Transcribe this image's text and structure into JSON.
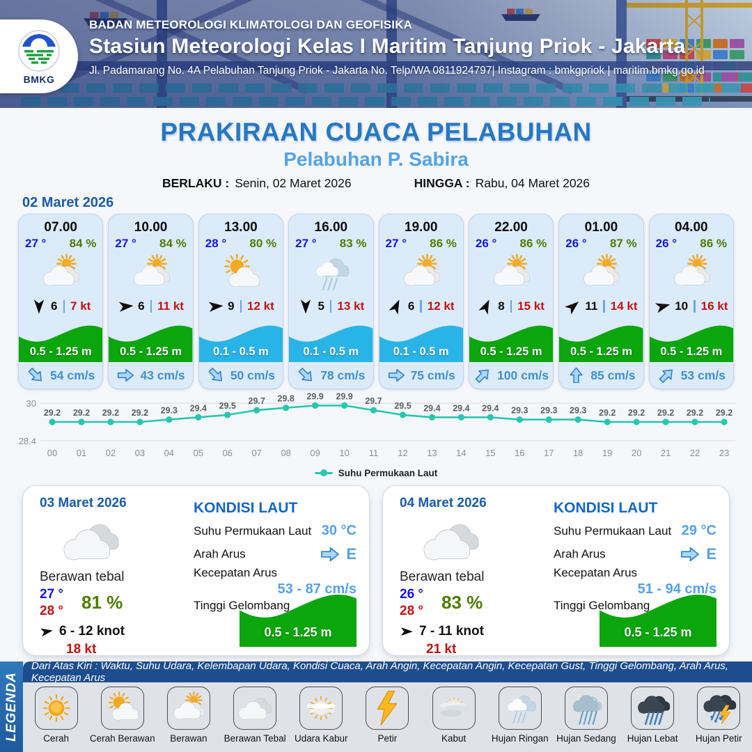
{
  "header": {
    "agency": "BADAN METEOROLOGI KLIMATOLOGI DAN GEOFISIKA",
    "station": "Stasiun Meteorologi Kelas I Maritim Tanjung Priok - Jakarta",
    "address": "Jl. Padamarang No. 4A Pelabuhan Tanjung Priok - Jakarta No. Telp/WA 0811924797| Instagram : bmkgpriok | maritim.bmkg.go.id",
    "logo_label": "BMKG"
  },
  "title": {
    "main": "PRAKIRAAN CUACA PELABUHAN",
    "subtitle": "Pelabuhan P. Sabira",
    "berlaku_label": "BERLAKU :",
    "berlaku_value": "Senin, 02 Maret 2026",
    "hingga_label": "HINGGA :",
    "hingga_value": "Rabu, 04 Maret 2026"
  },
  "day1": {
    "date": "02 Maret 2026",
    "cards": [
      {
        "time": "07.00",
        "temp": "27 °",
        "humidity": "84 %",
        "icon": "berawan",
        "wind_dir_deg": 180,
        "wind": "6",
        "gust": "7 kt",
        "wave": "0.5 - 1.25 m",
        "wave_color": "green",
        "current_dir_deg": 45,
        "current": "54 cm/s"
      },
      {
        "time": "10.00",
        "temp": "27 °",
        "humidity": "84 %",
        "icon": "berawan",
        "wind_dir_deg": 85,
        "wind": "6",
        "gust": "11 kt",
        "wave": "0.5 - 1.25 m",
        "wave_color": "green",
        "current_dir_deg": 0,
        "current": "43 cm/s"
      },
      {
        "time": "13.00",
        "temp": "28 °",
        "humidity": "80 %",
        "icon": "cerah-berawan",
        "wind_dir_deg": 85,
        "wind": "9",
        "gust": "12 kt",
        "wave": "0.1 - 0.5 m",
        "wave_color": "blue",
        "current_dir_deg": 45,
        "current": "50 cm/s"
      },
      {
        "time": "16.00",
        "temp": "27 °",
        "humidity": "83 %",
        "icon": "hujan-ringan",
        "wind_dir_deg": 180,
        "wind": "5",
        "gust": "13 kt",
        "wave": "0.1 - 0.5 m",
        "wave_color": "blue",
        "current_dir_deg": 45,
        "current": "78 cm/s"
      },
      {
        "time": "19.00",
        "temp": "27 °",
        "humidity": "86 %",
        "icon": "berawan",
        "wind_dir_deg": 25,
        "wind": "6",
        "gust": "12 kt",
        "wave": "0.1 - 0.5 m",
        "wave_color": "blue",
        "current_dir_deg": 0,
        "current": "75 cm/s"
      },
      {
        "time": "22.00",
        "temp": "26 °",
        "humidity": "86 %",
        "icon": "berawan",
        "wind_dir_deg": 25,
        "wind": "8",
        "gust": "15 kt",
        "wave": "0.5 - 1.25 m",
        "wave_color": "green",
        "current_dir_deg": -45,
        "current": "100 cm/s"
      },
      {
        "time": "01.00",
        "temp": "26 °",
        "humidity": "87 %",
        "icon": "berawan",
        "wind_dir_deg": 50,
        "wind": "11",
        "gust": "14 kt",
        "wave": "0.5 - 1.25 m",
        "wave_color": "green",
        "current_dir_deg": -90,
        "current": "85 cm/s"
      },
      {
        "time": "04.00",
        "temp": "26 °",
        "humidity": "86 %",
        "icon": "berawan",
        "wind_dir_deg": 75,
        "wind": "10",
        "gust": "16 kt",
        "wave": "0.5 - 1.25 m",
        "wave_color": "green",
        "current_dir_deg": -45,
        "current": "53 cm/s"
      }
    ]
  },
  "chart_data": {
    "type": "line",
    "x": [
      "00",
      "01",
      "02",
      "03",
      "04",
      "05",
      "06",
      "07",
      "08",
      "09",
      "10",
      "11",
      "12",
      "13",
      "14",
      "15",
      "16",
      "17",
      "18",
      "19",
      "20",
      "21",
      "22",
      "23"
    ],
    "series": [
      {
        "name": "Suhu Permukaan Laut",
        "values": [
          29.2,
          29.2,
          29.2,
          29.2,
          29.3,
          29.4,
          29.5,
          29.7,
          29.8,
          29.9,
          29.9,
          29.7,
          29.5,
          29.4,
          29.4,
          29.4,
          29.3,
          29.3,
          29.3,
          29.2,
          29.2,
          29.2,
          29.2,
          29.2
        ]
      }
    ],
    "ylim": [
      28.4,
      30
    ],
    "yticks": [
      "30",
      "28.4"
    ],
    "legend": "Suhu Permukaan Laut",
    "line_color": "#26c7b0",
    "grid": true,
    "legend_position": "bottom-center"
  },
  "day_cards": [
    {
      "date": "03 Maret 2026",
      "icon": "berawan-tebal",
      "condition": "Berawan tebal",
      "temp_min": "27 °",
      "temp_max": "28 °",
      "humidity": "81 %",
      "wind_dir_deg": 80,
      "wind": "6  - 12 knot",
      "gust": "18 kt",
      "sea": {
        "heading": "KONDISI LAUT",
        "sst_label": "Suhu Permukaan Laut",
        "sst": "30 °C",
        "arah_label": "Arah Arus",
        "arah": "E",
        "kecepatan_label": "Kecepatan Arus",
        "kecepatan": "53  - 87 cm/s",
        "gelombang_label": "Tinggi Gelombang",
        "gelombang": "0.5 - 1.25 m"
      }
    },
    {
      "date": "04 Maret 2026",
      "icon": "berawan-tebal",
      "condition": "Berawan tebal",
      "temp_min": "26 °",
      "temp_max": "28 °",
      "humidity": "83 %",
      "wind_dir_deg": 90,
      "wind": "7  - 11 knot",
      "gust": "21 kt",
      "sea": {
        "heading": "KONDISI LAUT",
        "sst_label": "Suhu Permukaan Laut",
        "sst": "29 °C",
        "arah_label": "Arah Arus",
        "arah": "E",
        "kecepatan_label": "Kecepatan Arus",
        "kecepatan": "51 - 94 cm/s",
        "gelombang_label": "Tinggi Gelombang",
        "gelombang": "0.5 - 1.25 m"
      }
    }
  ],
  "legend": {
    "title": "LEGENDA",
    "note": "Dari Atas Kiri : Waktu, Suhu Udara, Kelembapan Udara, Kondisi Cuaca, Arah Angin, Kecepatan Angin, Kecepatan Gust, Tinggi Gelombang, Arah Arus, Kecepatan Arus",
    "items": [
      {
        "icon": "cerah",
        "label": "Cerah"
      },
      {
        "icon": "cerah-berawan",
        "label": "Cerah Berawan"
      },
      {
        "icon": "berawan",
        "label": "Berawan"
      },
      {
        "icon": "berawan-tebal",
        "label": "Berawan Tebal"
      },
      {
        "icon": "udara-kabur",
        "label": "Udara Kabur"
      },
      {
        "icon": "petir",
        "label": "Petir"
      },
      {
        "icon": "kabut",
        "label": "Kabut"
      },
      {
        "icon": "hujan-ringan",
        "label": "Hujan Ringan"
      },
      {
        "icon": "hujan-sedang",
        "label": "Hujan Sedang"
      },
      {
        "icon": "hujan-lebat",
        "label": "Hujan Lebat"
      },
      {
        "icon": "hujan-petir",
        "label": "Hujan Petir"
      }
    ]
  },
  "colors": {
    "wave_green": "#0aa60c",
    "wave_blue": "#29b4e8",
    "accent_blue": "#2678c3",
    "value_blue": "#55a1e8",
    "temp_blue": "#1414e0",
    "humidity_green": "#4e7c04",
    "gust_red": "#c41212",
    "chart_teal": "#26c7b0"
  }
}
